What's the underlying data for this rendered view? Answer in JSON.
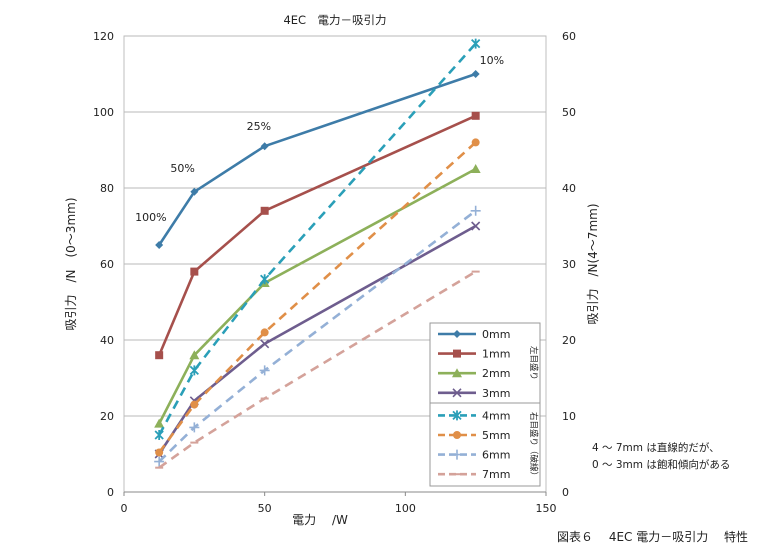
{
  "chart_data": {
    "type": "line",
    "title": "4EC　電力－吸引力",
    "xlabel": "電力　 /W",
    "ylabel_left": "吸引力　/N　(0～3mm)",
    "ylabel_right": "吸引力　/N(4～7mm)",
    "xlim": [
      0,
      150
    ],
    "xticks": [
      0,
      50,
      100,
      150
    ],
    "ylim_left": [
      0,
      120
    ],
    "yticks_left": [
      0,
      20,
      40,
      60,
      80,
      100,
      120
    ],
    "ylim_right": [
      0,
      60
    ],
    "yticks_right": [
      0,
      10,
      20,
      30,
      40,
      50,
      60
    ],
    "grid": "horizontal",
    "legend_position": "right",
    "legend_group_left": "左目盛り",
    "legend_group_right": "右目盛り（破線）",
    "x": [
      12.5,
      25,
      50,
      125
    ],
    "series": [
      {
        "name": "0mm",
        "axis": "left",
        "dashed": false,
        "marker": "diamond",
        "color": "#3E7CA8",
        "values": [
          65,
          79,
          91,
          110
        ]
      },
      {
        "name": "1mm",
        "axis": "left",
        "dashed": false,
        "marker": "square",
        "color": "#A6504C",
        "values": [
          36,
          58,
          74,
          99
        ]
      },
      {
        "name": "2mm",
        "axis": "left",
        "dashed": false,
        "marker": "triangle",
        "color": "#8DB05A",
        "values": [
          18,
          36,
          55,
          85
        ]
      },
      {
        "name": "3mm",
        "axis": "left",
        "dashed": false,
        "marker": "x",
        "color": "#6E5D8E",
        "values": [
          10,
          24,
          39,
          70
        ]
      },
      {
        "name": "4mm",
        "axis": "right",
        "dashed": true,
        "marker": "star",
        "color": "#2A9FB8",
        "values": [
          7.5,
          16,
          28,
          59
        ]
      },
      {
        "name": "5mm",
        "axis": "right",
        "dashed": true,
        "marker": "circle",
        "color": "#E08F48",
        "values": [
          5.2,
          11.5,
          21,
          46
        ]
      },
      {
        "name": "6mm",
        "axis": "right",
        "dashed": true,
        "marker": "plus",
        "color": "#94B0D6",
        "values": [
          4,
          8.5,
          16,
          37
        ]
      },
      {
        "name": "7mm",
        "axis": "right",
        "dashed": true,
        "marker": "dash",
        "color": "#D4A29A",
        "values": [
          3.2,
          6.5,
          12.3,
          29
        ]
      }
    ],
    "annotations": [
      {
        "text": "100%",
        "x": 12.5,
        "axis": "left",
        "y": 65
      },
      {
        "text": "50%",
        "x": 25,
        "axis": "left",
        "y": 79
      },
      {
        "text": "25%",
        "x": 50,
        "axis": "left",
        "y": 91
      },
      {
        "text": "10%",
        "x": 125,
        "axis": "left",
        "y": 110
      }
    ]
  },
  "note": {
    "line1": "4 ～ 7mm は直線的だが、",
    "line2": "0 ～ 3mm は飽和傾向がある"
  },
  "caption": "図表６　 4EC 電力－吸引力　 特性"
}
